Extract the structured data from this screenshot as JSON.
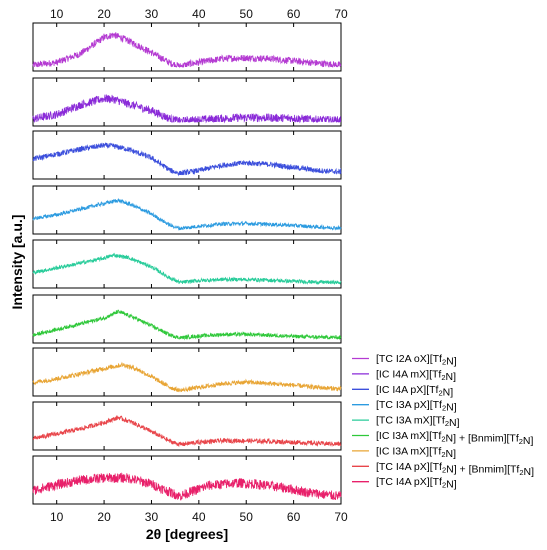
{
  "chart_data": {
    "type": "line",
    "xlabel": "2θ [degrees]",
    "ylabel": "Intensity [a.u.]",
    "xlim": [
      5,
      70
    ],
    "x_ticks": [
      10,
      20,
      30,
      40,
      50,
      60,
      70
    ],
    "x_tick_labels": [
      "10",
      "20",
      "30",
      "40",
      "50",
      "60",
      "70"
    ],
    "legend_position": "right, beside lower panels",
    "layout": "stacked panels, shared x axis, ticks labeled top and bottom",
    "series": [
      {
        "name_parts": [
          "[TC I2A oX][Tf",
          "2",
          "N]"
        ],
        "color": "#b43ad2",
        "noise": 0.09,
        "profile": [
          [
            5,
            0.05
          ],
          [
            10,
            0.12
          ],
          [
            15,
            0.35
          ],
          [
            20,
            0.78
          ],
          [
            22,
            0.85
          ],
          [
            25,
            0.7
          ],
          [
            30,
            0.38
          ],
          [
            34,
            0.1
          ],
          [
            36,
            0.02
          ],
          [
            38,
            0.08
          ],
          [
            45,
            0.22
          ],
          [
            50,
            0.24
          ],
          [
            55,
            0.22
          ],
          [
            60,
            0.16
          ],
          [
            65,
            0.1
          ],
          [
            70,
            0.05
          ]
        ]
      },
      {
        "name_parts": [
          "[IC I4A mX][Tf",
          "2",
          "N]"
        ],
        "color": "#8a2ad8",
        "noise": 0.11,
        "profile": [
          [
            5,
            0.08
          ],
          [
            10,
            0.2
          ],
          [
            15,
            0.45
          ],
          [
            20,
            0.62
          ],
          [
            22,
            0.6
          ],
          [
            25,
            0.48
          ],
          [
            30,
            0.3
          ],
          [
            34,
            0.08
          ],
          [
            36,
            0.02
          ],
          [
            40,
            0.06
          ],
          [
            50,
            0.12
          ],
          [
            60,
            0.1
          ],
          [
            65,
            0.06
          ],
          [
            70,
            0.04
          ]
        ]
      },
      {
        "name_parts": [
          "[IC I4A pX][Tf",
          "2",
          "N]"
        ],
        "color": "#3c4fdc",
        "noise": 0.07,
        "profile": [
          [
            5,
            0.42
          ],
          [
            10,
            0.55
          ],
          [
            15,
            0.68
          ],
          [
            20,
            0.78
          ],
          [
            22,
            0.76
          ],
          [
            25,
            0.68
          ],
          [
            30,
            0.45
          ],
          [
            34,
            0.12
          ],
          [
            36,
            0.04
          ],
          [
            40,
            0.12
          ],
          [
            45,
            0.26
          ],
          [
            50,
            0.32
          ],
          [
            55,
            0.28
          ],
          [
            60,
            0.2
          ],
          [
            65,
            0.12
          ],
          [
            70,
            0.08
          ]
        ]
      },
      {
        "name_parts": [
          "[TC I3A pX][Tf",
          "2",
          "N]"
        ],
        "color": "#2c9be0",
        "noise": 0.05,
        "profile": [
          [
            5,
            0.3
          ],
          [
            10,
            0.4
          ],
          [
            15,
            0.55
          ],
          [
            20,
            0.7
          ],
          [
            23,
            0.78
          ],
          [
            26,
            0.65
          ],
          [
            30,
            0.42
          ],
          [
            34,
            0.12
          ],
          [
            36,
            0.04
          ],
          [
            40,
            0.1
          ],
          [
            45,
            0.16
          ],
          [
            50,
            0.17
          ],
          [
            55,
            0.15
          ],
          [
            60,
            0.12
          ],
          [
            65,
            0.08
          ],
          [
            70,
            0.05
          ]
        ]
      },
      {
        "name_parts": [
          "[TC I3A mX][Tf",
          "2",
          "N]"
        ],
        "color": "#28cc9a",
        "noise": 0.05,
        "profile": [
          [
            5,
            0.3
          ],
          [
            10,
            0.42
          ],
          [
            15,
            0.55
          ],
          [
            20,
            0.68
          ],
          [
            22,
            0.76
          ],
          [
            25,
            0.7
          ],
          [
            30,
            0.45
          ],
          [
            34,
            0.15
          ],
          [
            36,
            0.04
          ],
          [
            40,
            0.09
          ],
          [
            45,
            0.12
          ],
          [
            50,
            0.12
          ],
          [
            55,
            0.1
          ],
          [
            60,
            0.07
          ],
          [
            65,
            0.05
          ],
          [
            70,
            0.04
          ]
        ]
      },
      {
        "name_parts": [
          "[IC I3A mX][Tf",
          "2",
          "N] + [Bnmim][Tf",
          "2",
          "N]"
        ],
        "color": "#2fc83a",
        "noise": 0.05,
        "profile": [
          [
            5,
            0.1
          ],
          [
            10,
            0.25
          ],
          [
            15,
            0.4
          ],
          [
            20,
            0.55
          ],
          [
            23,
            0.72
          ],
          [
            26,
            0.58
          ],
          [
            30,
            0.35
          ],
          [
            34,
            0.1
          ],
          [
            36,
            0.03
          ],
          [
            40,
            0.08
          ],
          [
            45,
            0.12
          ],
          [
            50,
            0.12
          ],
          [
            55,
            0.1
          ],
          [
            60,
            0.07
          ],
          [
            65,
            0.05
          ],
          [
            70,
            0.04
          ]
        ]
      },
      {
        "name_parts": [
          "[IC I3A mX][Tf",
          "2",
          "N]"
        ],
        "color": "#e8a535",
        "noise": 0.06,
        "profile": [
          [
            5,
            0.25
          ],
          [
            10,
            0.35
          ],
          [
            15,
            0.48
          ],
          [
            20,
            0.62
          ],
          [
            24,
            0.72
          ],
          [
            27,
            0.6
          ],
          [
            30,
            0.4
          ],
          [
            34,
            0.12
          ],
          [
            36,
            0.04
          ],
          [
            40,
            0.12
          ],
          [
            45,
            0.22
          ],
          [
            50,
            0.26
          ],
          [
            55,
            0.22
          ],
          [
            60,
            0.18
          ],
          [
            65,
            0.12
          ],
          [
            70,
            0.08
          ]
        ]
      },
      {
        "name_parts": [
          "[TC I4A pX][Tf",
          "2",
          "N] + [Bnmim][Tf",
          "2",
          "N]"
        ],
        "color": "#e8454a",
        "noise": 0.06,
        "profile": [
          [
            5,
            0.2
          ],
          [
            10,
            0.32
          ],
          [
            15,
            0.45
          ],
          [
            20,
            0.62
          ],
          [
            23,
            0.75
          ],
          [
            26,
            0.62
          ],
          [
            30,
            0.38
          ],
          [
            34,
            0.12
          ],
          [
            36,
            0.04
          ],
          [
            40,
            0.1
          ],
          [
            45,
            0.14
          ],
          [
            50,
            0.14
          ],
          [
            55,
            0.12
          ],
          [
            60,
            0.1
          ],
          [
            65,
            0.07
          ],
          [
            70,
            0.05
          ]
        ]
      },
      {
        "name_parts": [
          "[TC I4A pX][Tf",
          "2",
          "N]"
        ],
        "color": "#e8206a",
        "noise": 0.13,
        "profile": [
          [
            5,
            0.25
          ],
          [
            10,
            0.4
          ],
          [
            15,
            0.52
          ],
          [
            20,
            0.58
          ],
          [
            25,
            0.58
          ],
          [
            30,
            0.42
          ],
          [
            34,
            0.2
          ],
          [
            36,
            0.1
          ],
          [
            38,
            0.2
          ],
          [
            42,
            0.38
          ],
          [
            48,
            0.45
          ],
          [
            52,
            0.42
          ],
          [
            58,
            0.32
          ],
          [
            63,
            0.2
          ],
          [
            68,
            0.12
          ],
          [
            70,
            0.1
          ]
        ]
      }
    ]
  }
}
